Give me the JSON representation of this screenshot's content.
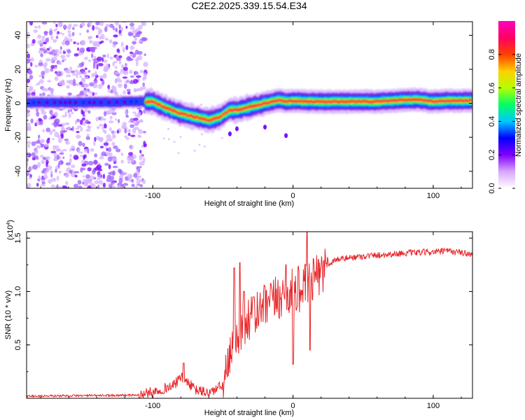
{
  "title": "C2E2.2025.339.15.54.E34",
  "chart_data": [
    {
      "type": "heatmap",
      "xlabel": "Height of straight line (km)",
      "ylabel": "Frequency (Hz)",
      "xlim": [
        -190,
        128
      ],
      "ylim": [
        -50,
        48
      ],
      "xticks": [
        -100,
        0,
        100
      ],
      "xtick_labels": [
        "-100",
        "0",
        "100"
      ],
      "yticks": [
        -40,
        -20,
        0,
        20,
        40
      ],
      "ytick_labels": [
        "-40",
        "-20",
        "0",
        "20",
        "40"
      ],
      "colorbar": {
        "label": "Normalized spectral amplitude",
        "range": [
          0,
          1
        ],
        "ticks": [
          0,
          0.2,
          0.4,
          0.6,
          0.8
        ],
        "tick_labels": [
          "0.0",
          "0.2",
          "0.4",
          "0.6",
          "0.8"
        ],
        "colors": [
          "#ffffff",
          "#d9a6ff",
          "#8000ff",
          "#0000ff",
          "#00c8ff",
          "#00ff64",
          "#b4ff00",
          "#ffd000",
          "#ff4000",
          "#ff0060",
          "#ff00c0"
        ]
      },
      "ridge": {
        "x": [
          -190,
          -130,
          -115,
          -100,
          -90,
          -80,
          -70,
          -60,
          -52,
          -45,
          -40,
          -35,
          -30,
          -25,
          -20,
          -15,
          -10,
          -5,
          0,
          10,
          20,
          30,
          60,
          80,
          90,
          100,
          110,
          128
        ],
        "y": [
          0.5,
          0.5,
          1,
          1,
          -3,
          -6,
          -8,
          -10,
          -8,
          -4,
          -4,
          -3,
          -2,
          -1,
          0,
          1,
          2,
          1,
          1.5,
          1,
          1,
          1,
          1,
          2,
          2,
          1,
          1.5,
          1.5
        ]
      }
    },
    {
      "type": "line",
      "xlabel": "Height of straight line (km)",
      "ylabel": "SNR (10 * v/v)",
      "y_multiplier": "(x10^4)",
      "y_multiplier_base": "(x10",
      "y_multiplier_exp": "4",
      "y_multiplier_close": ")",
      "xlim": [
        -190,
        128
      ],
      "ylim": [
        0,
        1.56
      ],
      "xticks": [
        -100,
        0,
        100
      ],
      "xtick_labels": [
        "-100",
        "0",
        "100"
      ],
      "yticks": [
        0.5,
        1.0,
        1.5
      ],
      "ytick_labels": [
        "0.5",
        "1.0",
        "1.5"
      ],
      "color": "#e8262a",
      "series_envelope": {
        "x": [
          -190,
          -110,
          -100,
          -85,
          -80,
          -75,
          -70,
          -60,
          -50,
          -45,
          -40,
          -35,
          -30,
          -20,
          -10,
          0,
          10,
          20,
          30,
          50,
          80,
          100,
          110,
          128
        ],
        "y": [
          0.02,
          0.03,
          0.06,
          0.12,
          0.2,
          0.15,
          0.08,
          0.05,
          0.12,
          0.35,
          0.6,
          0.7,
          0.75,
          0.85,
          0.95,
          1.0,
          1.05,
          1.2,
          1.3,
          1.33,
          1.36,
          1.37,
          1.38,
          1.35
        ]
      }
    }
  ]
}
